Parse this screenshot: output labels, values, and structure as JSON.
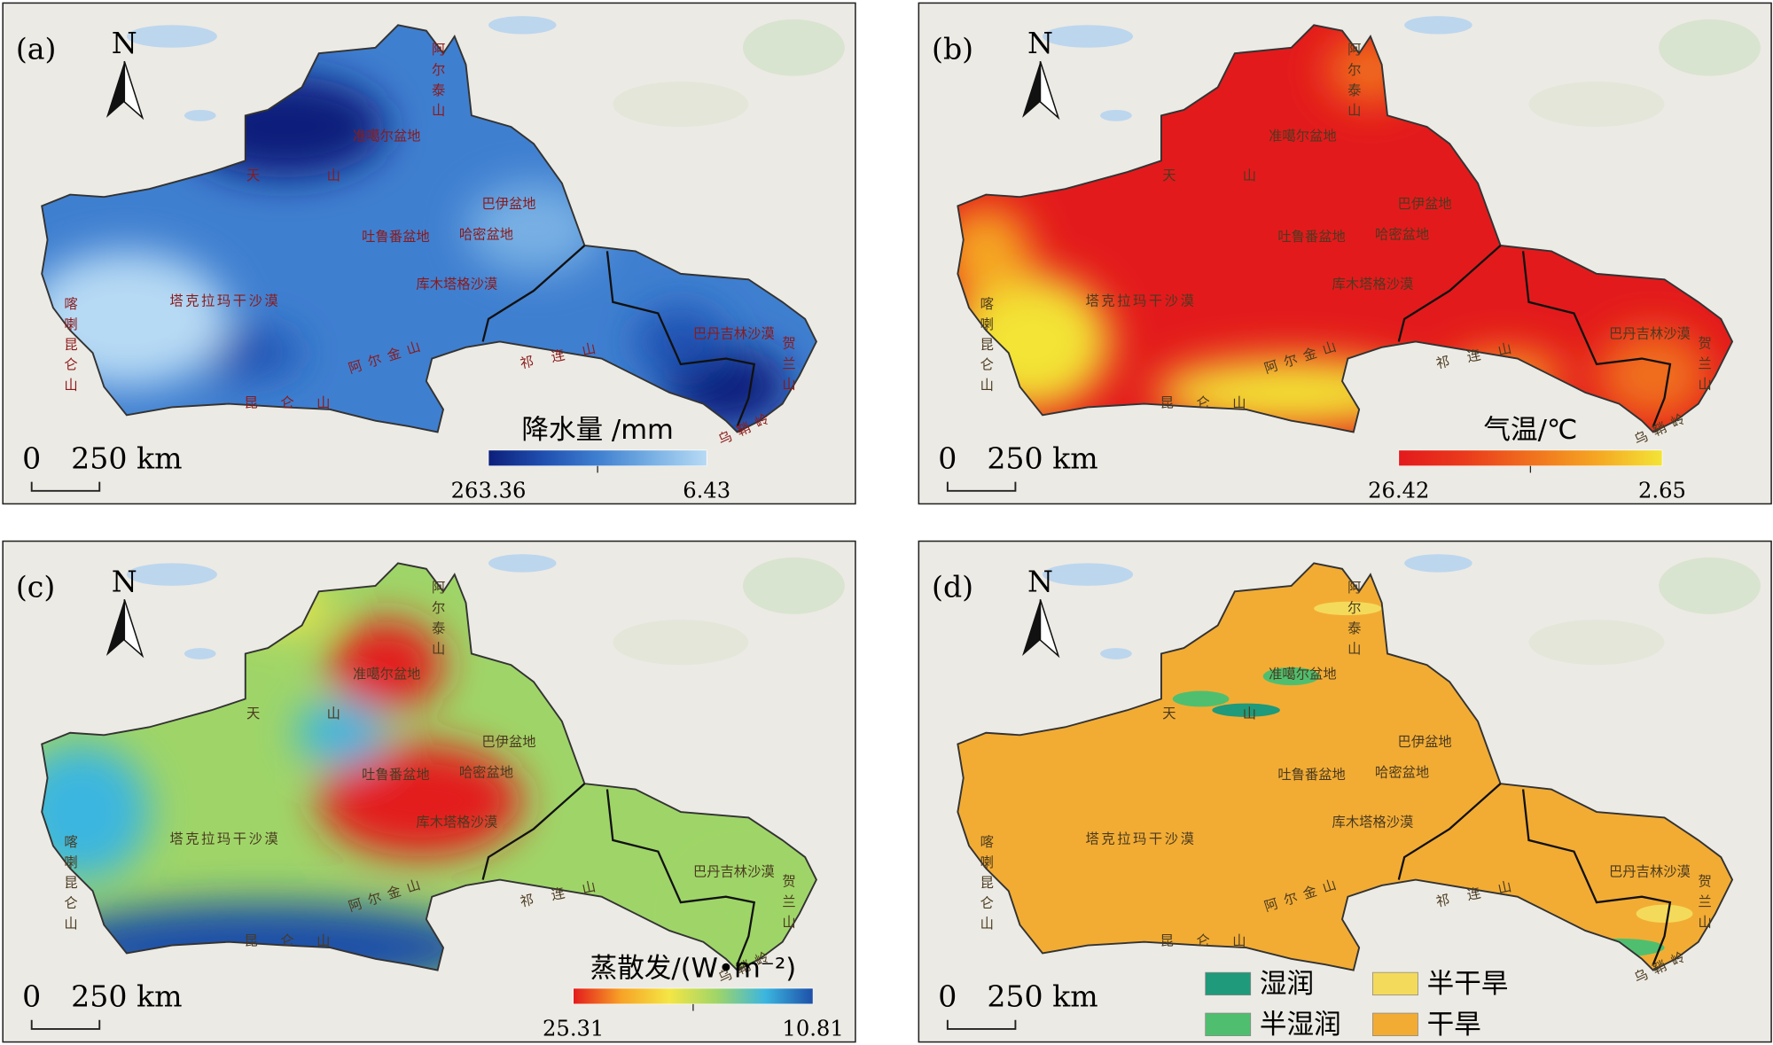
{
  "panels": [
    {
      "label": "(a)",
      "north": "N",
      "scale": {
        "zero": "0",
        "distance": "250 km"
      },
      "legend": {
        "title": "降水量 /mm",
        "left": "263.36",
        "right": "6.43",
        "ramp": [
          "#0c1f7a",
          "#1f4fb0",
          "#3f7fd0",
          "#78b0e4",
          "#b7daf4"
        ]
      }
    },
    {
      "label": "(b)",
      "north": "N",
      "scale": {
        "zero": "0",
        "distance": "250 km"
      },
      "legend": {
        "title": "气温/℃",
        "left": "26.42",
        "right": "2.65",
        "ramp": [
          "#e31a1c",
          "#ea3a1c",
          "#f0701e",
          "#f5a623",
          "#f3e436"
        ]
      }
    },
    {
      "label": "(c)",
      "north": "N",
      "scale": {
        "zero": "0",
        "distance": "250 km"
      },
      "legend": {
        "title": "蒸散发/(W•m⁻²)",
        "left": "25.31",
        "right": "10.81",
        "ramp": [
          "#e31a1c",
          "#f7a326",
          "#f4e645",
          "#9fd568",
          "#3bb6e0",
          "#1d4fa8"
        ]
      }
    },
    {
      "label": "(d)",
      "north": "N",
      "scale": {
        "zero": "0",
        "distance": "250 km"
      },
      "legend": {
        "classes": [
          {
            "name": "湿润",
            "color": "#1f9a7a"
          },
          {
            "name": "半湿润",
            "color": "#4fbf6f"
          },
          {
            "name": "半干旱",
            "color": "#f4da5a"
          },
          {
            "name": "干旱",
            "color": "#f2ac34"
          }
        ]
      }
    }
  ],
  "places": [
    "准噶尔盆地",
    "天",
    "山",
    "巴伊盆地",
    "吐鲁番盆地",
    "哈密盆地",
    "塔克拉玛干沙漠",
    "库木塔格沙漠",
    "巴丹吉林沙漠",
    "阿尔金山",
    "昆仑山",
    "祁连山",
    "喀喇昆仑山",
    "阿尔泰山",
    "贺兰山",
    "乌鞘岭"
  ]
}
